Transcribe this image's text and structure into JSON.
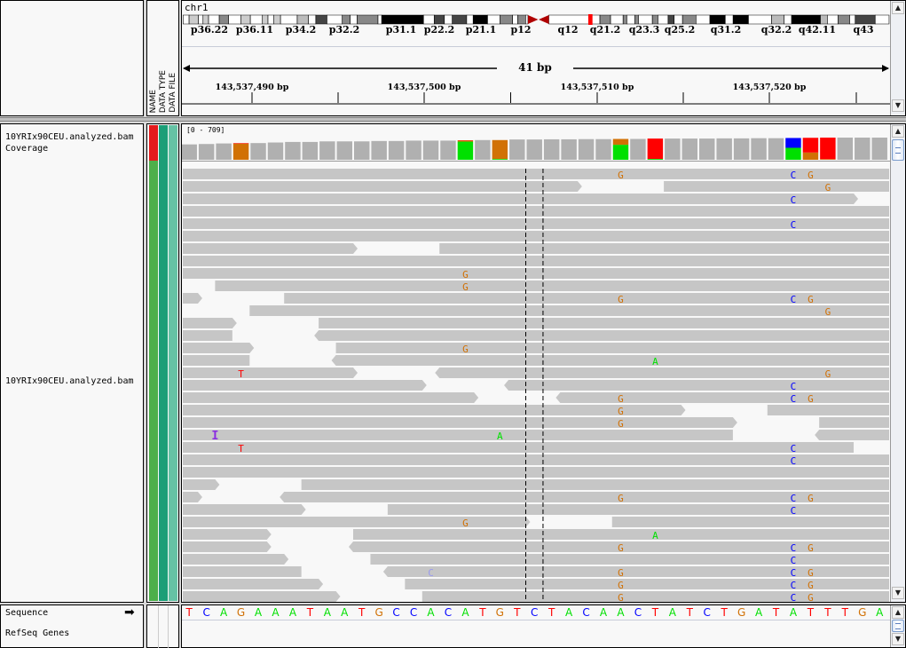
{
  "header": {
    "chromosome": "chr1",
    "band_labels": [
      "p36.22",
      "p36.11",
      "p34.2",
      "p32.2",
      "p31.1",
      "p22.2",
      "p21.1",
      "p12",
      "q12",
      "q21.2",
      "q23.3",
      "q25.2",
      "q31.2",
      "q32.2",
      "q42.11",
      "q43"
    ],
    "span_label": "41 bp",
    "tick_labels": [
      "143,537,490 bp",
      "143,537,500 bp",
      "143,537,510 bp",
      "143,537,520 bp"
    ]
  },
  "attribute_headers": [
    "NAME",
    "DATA TYPE",
    "DATA FILE"
  ],
  "tracks": {
    "coverage_name": "10YRIx90CEU.analyzed.bam Coverage",
    "alignment_name": "10YRIx90CEU.analyzed.bam",
    "sequence_name": "Sequence",
    "genes_name": "RefSeq Genes"
  },
  "colors": {
    "A": "#00e000",
    "C": "#0000ff",
    "G": "#d17105",
    "T": "#ff0000",
    "read": "#c6c6c6",
    "coverage": "#b0b0b0",
    "insertion": "#8a2be2",
    "lowq_C": "#9999ee"
  },
  "coverage": {
    "range_label": "[0 - 709]",
    "max": 709,
    "values": [
      410,
      420,
      435,
      445,
      445,
      460,
      475,
      475,
      490,
      490,
      490,
      500,
      500,
      510,
      510,
      510,
      520,
      525,
      525,
      540,
      540,
      545,
      545,
      550,
      550,
      555,
      555,
      565,
      565,
      565,
      565,
      570,
      570,
      575,
      575,
      580,
      585,
      590,
      590,
      590,
      590
    ],
    "alleles": {
      "143537489": {
        "G": 0.97,
        "T": 0.03
      },
      "143537502": {
        "A": 0.93,
        "G": 0.05,
        "T": 0.02
      },
      "143537504": {
        "A": 0.04,
        "G": 0.96
      },
      "143537511": {
        "A": 0.72,
        "G": 0.28
      },
      "143537513": {
        "A": 0.04,
        "T": 0.96
      },
      "143537521": {
        "A": 0.55,
        "C": 0.45
      },
      "143537522": {
        "G": 0.33,
        "T": 0.67
      },
      "143537523": {
        "G": 0.03,
        "T": 0.97
      }
    }
  },
  "sequence": "TCAGAAATAATGCCACATGTCTACAACTATCTGATATTTGA",
  "reads": [
    {
      "segs": [
        [
          143537485,
          143537527,
          "+"
        ]
      ],
      "mm": [
        [
          143537511,
          "G"
        ],
        [
          143537521,
          "C"
        ],
        [
          143537522,
          "G"
        ]
      ]
    },
    {
      "segs": [
        [
          143537485,
          143537508,
          "+"
        ],
        [
          143537514,
          143537527,
          "+"
        ]
      ],
      "mm": [
        [
          143537523,
          "G"
        ]
      ]
    },
    {
      "segs": [
        [
          143537485,
          143537524,
          "+"
        ]
      ],
      "mm": [
        [
          143537521,
          "C"
        ]
      ]
    },
    {
      "segs": [
        [
          143537485,
          143537527,
          "+"
        ]
      ],
      "mm": []
    },
    {
      "segs": [
        [
          143537485,
          143537527,
          "+"
        ]
      ],
      "mm": [
        [
          143537521,
          "C"
        ]
      ]
    },
    {
      "segs": [
        [
          143537485,
          143537527,
          "+"
        ]
      ],
      "mm": []
    },
    {
      "segs": [
        [
          143537485,
          143537495,
          "+"
        ],
        [
          143537501,
          143537527,
          "+"
        ]
      ],
      "mm": []
    },
    {
      "segs": [
        [
          143537485,
          143537527,
          "+"
        ]
      ],
      "mm": []
    },
    {
      "segs": [
        [
          143537485,
          143537527,
          "+"
        ]
      ],
      "mm": [
        [
          143537502,
          "G"
        ]
      ]
    },
    {
      "segs": [
        [
          143537488,
          143537527,
          "+"
        ]
      ],
      "mm": [
        [
          143537502,
          "G"
        ]
      ]
    },
    {
      "segs": [
        [
          143537485,
          143537486,
          "+"
        ],
        [
          143537492,
          143537527,
          "+"
        ]
      ],
      "mm": [
        [
          143537511,
          "G"
        ],
        [
          143537521,
          "C"
        ],
        [
          143537522,
          "G"
        ]
      ]
    },
    {
      "segs": [
        [
          143537490,
          143537527,
          "+"
        ]
      ],
      "mm": [
        [
          143537523,
          "G"
        ]
      ]
    },
    {
      "segs": [
        [
          143537485,
          143537488,
          "+"
        ],
        [
          143537494,
          143537527,
          "+"
        ]
      ],
      "mm": []
    },
    {
      "segs": [
        [
          143537485,
          143537488,
          "-"
        ],
        [
          143537494,
          143537527,
          "-"
        ]
      ],
      "mm": []
    },
    {
      "segs": [
        [
          143537485,
          143537489,
          "+"
        ],
        [
          143537495,
          143537527,
          "+"
        ]
      ],
      "mm": [
        [
          143537502,
          "G"
        ]
      ]
    },
    {
      "segs": [
        [
          143537485,
          143537489,
          "-"
        ],
        [
          143537495,
          143537527,
          "-"
        ]
      ],
      "mm": [
        [
          143537513,
          "A"
        ]
      ]
    },
    {
      "segs": [
        [
          143537485,
          143537495,
          "+"
        ],
        [
          143537501,
          143537527,
          "-"
        ]
      ],
      "mm": [
        [
          143537489,
          "T"
        ],
        [
          143537523,
          "G"
        ]
      ]
    },
    {
      "segs": [
        [
          143537485,
          143537499,
          "+"
        ],
        [
          143537505,
          143537527,
          "-"
        ]
      ],
      "mm": [
        [
          143537521,
          "C"
        ]
      ]
    },
    {
      "segs": [
        [
          143537485,
          143537502,
          "+"
        ],
        [
          143537508,
          143537527,
          "-"
        ]
      ],
      "mm": [
        [
          143537511,
          "G"
        ],
        [
          143537521,
          "C"
        ],
        [
          143537522,
          "G"
        ]
      ]
    },
    {
      "segs": [
        [
          143537485,
          143537514,
          "+"
        ],
        [
          143537520,
          143537527,
          "+"
        ]
      ],
      "mm": [
        [
          143537511,
          "G"
        ]
      ]
    },
    {
      "segs": [
        [
          143537485,
          143537517,
          "+"
        ],
        [
          143537523,
          143537527,
          "+"
        ]
      ],
      "mm": [
        [
          143537511,
          "G"
        ]
      ]
    },
    {
      "segs": [
        [
          143537485,
          143537517,
          "-"
        ],
        [
          143537523,
          143537527,
          "-"
        ]
      ],
      "mm": [
        [
          143537488,
          "I"
        ],
        [
          143537504,
          "A"
        ]
      ]
    },
    {
      "segs": [
        [
          143537485,
          143537524,
          "-"
        ]
      ],
      "mm": [
        [
          143537489,
          "T"
        ],
        [
          143537521,
          "C"
        ]
      ]
    },
    {
      "segs": [
        [
          143537485,
          143537527,
          "+"
        ]
      ],
      "mm": [
        [
          143537521,
          "C"
        ]
      ]
    },
    {
      "segs": [
        [
          143537485,
          143537527,
          "+"
        ]
      ],
      "mm": []
    },
    {
      "segs": [
        [
          143537485,
          143537487,
          "+"
        ],
        [
          143537493,
          143537527,
          "+"
        ]
      ],
      "mm": []
    },
    {
      "segs": [
        [
          143537485,
          143537486,
          "+"
        ],
        [
          143537492,
          143537527,
          "-"
        ]
      ],
      "mm": [
        [
          143537511,
          "G"
        ],
        [
          143537521,
          "C"
        ],
        [
          143537522,
          "G"
        ]
      ]
    },
    {
      "segs": [
        [
          143537485,
          143537492,
          "+"
        ],
        [
          143537498,
          143537527,
          "+"
        ]
      ],
      "mm": [
        [
          143537521,
          "C"
        ]
      ]
    },
    {
      "segs": [
        [
          143537485,
          143537505,
          "+"
        ],
        [
          143537511,
          143537527,
          "+"
        ]
      ],
      "mm": [
        [
          143537502,
          "G"
        ]
      ]
    },
    {
      "segs": [
        [
          143537485,
          143537490,
          "+"
        ],
        [
          143537496,
          143537527,
          "+"
        ]
      ],
      "mm": [
        [
          143537513,
          "A"
        ]
      ]
    },
    {
      "segs": [
        [
          143537485,
          143537490,
          "+"
        ],
        [
          143537496,
          143537527,
          "-"
        ]
      ],
      "mm": [
        [
          143537511,
          "G"
        ],
        [
          143537521,
          "C"
        ],
        [
          143537522,
          "G"
        ]
      ]
    },
    {
      "segs": [
        [
          143537485,
          143537491,
          "+"
        ],
        [
          143537497,
          143537527,
          "+"
        ]
      ],
      "mm": [
        [
          143537521,
          "C"
        ]
      ]
    },
    {
      "segs": [
        [
          143537485,
          143537492,
          "-"
        ],
        [
          143537498,
          143537527,
          "-"
        ]
      ],
      "mm": [
        [
          143537500,
          "C",
          "lowq"
        ],
        [
          143537511,
          "G"
        ],
        [
          143537521,
          "C"
        ],
        [
          143537522,
          "G"
        ]
      ]
    },
    {
      "segs": [
        [
          143537485,
          143537493,
          "+"
        ],
        [
          143537499,
          143537527,
          "+"
        ]
      ],
      "mm": [
        [
          143537511,
          "G"
        ],
        [
          143537521,
          "C"
        ],
        [
          143537522,
          "G"
        ]
      ]
    },
    {
      "segs": [
        [
          143537485,
          143537494,
          "+"
        ],
        [
          143537500,
          143537527,
          "+"
        ]
      ],
      "mm": [
        [
          143537511,
          "G"
        ],
        [
          143537521,
          "C"
        ],
        [
          143537522,
          "G"
        ]
      ]
    }
  ]
}
